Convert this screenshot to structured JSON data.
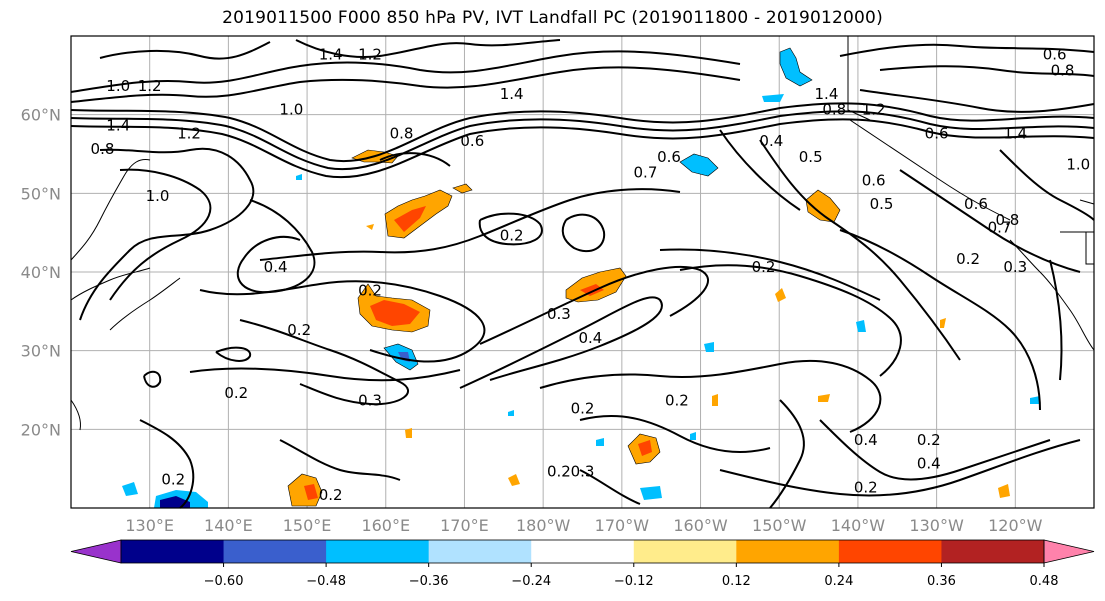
{
  "title": "2019011500 F000 850 hPa PV, IVT Landfall PC (2019011800 - 2019012000)",
  "map": {
    "lat_labels": [
      "60°N",
      "50°N",
      "40°N",
      "30°N",
      "20°N"
    ],
    "lon_labels": [
      "130°E",
      "140°E",
      "150°E",
      "160°E",
      "170°E",
      "180°W",
      "170°W",
      "160°W",
      "150°W",
      "140°W",
      "130°W",
      "120°W"
    ],
    "lat_values": [
      60,
      50,
      40,
      30,
      20
    ],
    "lon_values": [
      130,
      140,
      150,
      160,
      170,
      180,
      190,
      200,
      210,
      220,
      230,
      240
    ],
    "extent": {
      "lon_min": 120,
      "lon_max": 250,
      "lat_min": 10,
      "lat_max": 70
    },
    "contour_labels": [
      {
        "text": "1.0",
        "lon": 126,
        "lat": 63
      },
      {
        "text": "1.2",
        "lon": 130,
        "lat": 63
      },
      {
        "text": "1.4",
        "lon": 126,
        "lat": 58
      },
      {
        "text": "0.8",
        "lon": 124,
        "lat": 55
      },
      {
        "text": "1.0",
        "lon": 131,
        "lat": 49
      },
      {
        "text": "1.2",
        "lon": 135,
        "lat": 57
      },
      {
        "text": "1.4",
        "lon": 153,
        "lat": 67
      },
      {
        "text": "1.2",
        "lon": 158,
        "lat": 67
      },
      {
        "text": "1.0",
        "lon": 158,
        "lat": 69
      },
      {
        "text": "1.0",
        "lon": 148,
        "lat": 60
      },
      {
        "text": "0.8",
        "lon": 162,
        "lat": 57
      },
      {
        "text": "0.6",
        "lon": 171,
        "lat": 56
      },
      {
        "text": "1.4",
        "lon": 176,
        "lat": 62
      },
      {
        "text": "0.6",
        "lon": 196,
        "lat": 54
      },
      {
        "text": "0.7",
        "lon": 193,
        "lat": 52
      },
      {
        "text": "0.4",
        "lon": 209,
        "lat": 56
      },
      {
        "text": "0.5",
        "lon": 214,
        "lat": 54
      },
      {
        "text": "1.4",
        "lon": 216,
        "lat": 62
      },
      {
        "text": "0.8",
        "lon": 217,
        "lat": 60
      },
      {
        "text": "1.2",
        "lon": 222,
        "lat": 60
      },
      {
        "text": "0.6",
        "lon": 230,
        "lat": 57
      },
      {
        "text": "0.6",
        "lon": 245,
        "lat": 67
      },
      {
        "text": "0.8",
        "lon": 246,
        "lat": 65
      },
      {
        "text": "1.4",
        "lon": 240,
        "lat": 57
      },
      {
        "text": "1.0",
        "lon": 248,
        "lat": 53
      },
      {
        "text": "0.6",
        "lon": 222,
        "lat": 51
      },
      {
        "text": "0.5",
        "lon": 223,
        "lat": 48
      },
      {
        "text": "0.6",
        "lon": 235,
        "lat": 48
      },
      {
        "text": "0.8",
        "lon": 239,
        "lat": 46
      },
      {
        "text": "0.7",
        "lon": 238,
        "lat": 45
      },
      {
        "text": "0.2",
        "lon": 176,
        "lat": 44
      },
      {
        "text": "0.4",
        "lon": 146,
        "lat": 40
      },
      {
        "text": "0.2",
        "lon": 149,
        "lat": 32
      },
      {
        "text": "0.2",
        "lon": 158,
        "lat": 37
      },
      {
        "text": "0.2",
        "lon": 141,
        "lat": 24
      },
      {
        "text": "0.3",
        "lon": 158,
        "lat": 23
      },
      {
        "text": "0.3",
        "lon": 182,
        "lat": 34
      },
      {
        "text": "0.4",
        "lon": 186,
        "lat": 31
      },
      {
        "text": "0.2",
        "lon": 208,
        "lat": 40
      },
      {
        "text": "0.2",
        "lon": 185,
        "lat": 22
      },
      {
        "text": "0.2",
        "lon": 197,
        "lat": 23
      },
      {
        "text": "0.2",
        "lon": 182,
        "lat": 14
      },
      {
        "text": "0.3",
        "lon": 185,
        "lat": 14
      },
      {
        "text": "0.2",
        "lon": 133,
        "lat": 13
      },
      {
        "text": "0.2",
        "lon": 137,
        "lat": 10
      },
      {
        "text": "0.2",
        "lon": 153,
        "lat": 11
      },
      {
        "text": "0.4",
        "lon": 221,
        "lat": 18
      },
      {
        "text": "0.4",
        "lon": 229,
        "lat": 15
      },
      {
        "text": "0.2",
        "lon": 229,
        "lat": 18
      },
      {
        "text": "0.2",
        "lon": 221,
        "lat": 12
      },
      {
        "text": "0.2",
        "lon": 199,
        "lat": 8
      },
      {
        "text": "0.3",
        "lon": 240,
        "lat": 40
      },
      {
        "text": "0.2",
        "lon": 234,
        "lat": 41
      }
    ]
  },
  "colorbar": {
    "ticks": [
      "−0.60",
      "−0.48",
      "−0.36",
      "−0.24",
      "−0.12",
      "0.12",
      "0.24",
      "0.36",
      "0.48",
      "0.60"
    ],
    "bins": [
      {
        "color": "#9932cc"
      },
      {
        "color": "#00008b"
      },
      {
        "color": "#3a5fcd"
      },
      {
        "color": "#00bfff"
      },
      {
        "color": "#b0e2ff"
      },
      {
        "color": "#ffffff"
      },
      {
        "color": "#ffec8b"
      },
      {
        "color": "#ffa500"
      },
      {
        "color": "#ff4500"
      },
      {
        "color": "#b22222"
      },
      {
        "color": "#ff82ab"
      }
    ]
  },
  "shading_colors": {
    "orange": "#ffa500",
    "red": "#ff4500",
    "yellow": "#ffec8b",
    "sky": "#00bfff",
    "navy": "#00008b",
    "lightblue": "#b0e2ff"
  }
}
